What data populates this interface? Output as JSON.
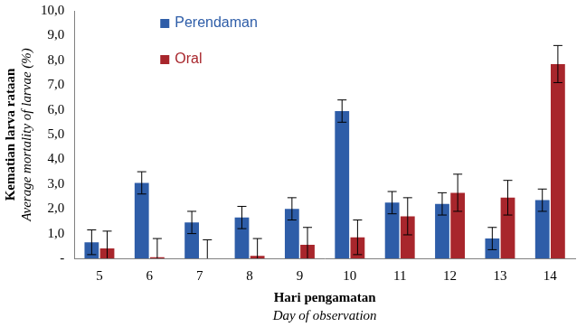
{
  "chart_data": {
    "type": "bar",
    "x_label": [
      "Hari pengamatan",
      "Day of observation"
    ],
    "y_label": [
      "Kematian larva rataan",
      "Average mortality of larvae (%)"
    ],
    "categories": [
      "5",
      "6",
      "7",
      "8",
      "9",
      "10",
      "11",
      "12",
      "13",
      "14"
    ],
    "series": [
      {
        "name": "Perendaman",
        "color": "#2e5da8",
        "values": [
          0.65,
          3.05,
          1.45,
          1.65,
          2.0,
          5.95,
          2.25,
          2.2,
          0.8,
          2.35
        ],
        "errors": [
          0.5,
          0.45,
          0.45,
          0.45,
          0.45,
          0.45,
          0.45,
          0.45,
          0.45,
          0.45
        ]
      },
      {
        "name": "Oral",
        "color": "#a8262c",
        "values": [
          0.4,
          0.05,
          0.0,
          0.1,
          0.55,
          0.85,
          1.7,
          2.65,
          2.45,
          7.85
        ],
        "errors": [
          0.7,
          0.75,
          0.75,
          0.7,
          0.7,
          0.7,
          0.75,
          0.75,
          0.7,
          0.75
        ]
      }
    ],
    "ylim": [
      0,
      10
    ],
    "yticks": [
      {
        "value": 0,
        "label": "-"
      },
      {
        "value": 1,
        "label": "1,0"
      },
      {
        "value": 2,
        "label": "2,0"
      },
      {
        "value": 3,
        "label": "3,0"
      },
      {
        "value": 4,
        "label": "4,0"
      },
      {
        "value": 5,
        "label": "5,0"
      },
      {
        "value": 6,
        "label": "6,0"
      },
      {
        "value": 7,
        "label": "7,0"
      },
      {
        "value": 8,
        "label": "8,0"
      },
      {
        "value": 9,
        "label": "9,0"
      },
      {
        "value": 10,
        "label": "10,0"
      }
    ],
    "grid": false,
    "legend": "upper left"
  }
}
